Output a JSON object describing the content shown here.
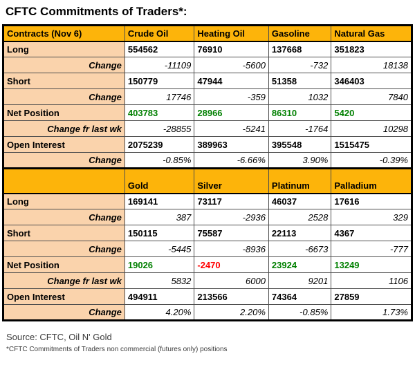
{
  "page_title": "CFTC Commitments of Traders*:",
  "colors": {
    "header_bg": "#fdb40a",
    "label_bg": "#fad3ac",
    "positive": "#008000",
    "negative": "#ff0000",
    "border_inner": "#4d4d4d",
    "border_outer": "#000000"
  },
  "table": {
    "sections": [
      {
        "headers": [
          "Contracts (Nov 6)",
          "Crude Oil",
          "Heating Oil",
          "Gasoline",
          "Natural Gas"
        ],
        "tall_header": false,
        "rows": [
          {
            "label": "Long",
            "type": "position",
            "values": [
              "554562",
              "76910",
              "137668",
              "351823"
            ]
          },
          {
            "label": "Change",
            "type": "change",
            "values": [
              "-11109",
              "-5600",
              "-732",
              "18138"
            ]
          },
          {
            "label": "Short",
            "type": "position",
            "values": [
              "150779",
              "47944",
              "51358",
              "346403"
            ]
          },
          {
            "label": "Change",
            "type": "change",
            "values": [
              "17746",
              "-359",
              "1032",
              "7840"
            ]
          },
          {
            "label": "Net Position",
            "type": "net",
            "values": [
              "403783",
              "28966",
              "86310",
              "5420"
            ],
            "value_colors": [
              "#008000",
              "#008000",
              "#008000",
              "#008000"
            ]
          },
          {
            "label": "Change fr last wk",
            "type": "change",
            "values": [
              "-28855",
              "-5241",
              "-1764",
              "10298"
            ]
          },
          {
            "label": "Open Interest",
            "type": "position",
            "values": [
              "2075239",
              "389963",
              "395548",
              "1515475"
            ]
          },
          {
            "label": "Change",
            "type": "change",
            "values": [
              "-0.85%",
              "-6.66%",
              "3.90%",
              "-0.39%"
            ]
          }
        ]
      },
      {
        "headers": [
          "",
          "Gold",
          "Silver",
          "Platinum",
          "Palladium"
        ],
        "tall_header": true,
        "rows": [
          {
            "label": "Long",
            "type": "position",
            "values": [
              "169141",
              "73117",
              "46037",
              "17616"
            ]
          },
          {
            "label": "Change",
            "type": "change",
            "values": [
              "387",
              "-2936",
              "2528",
              "329"
            ]
          },
          {
            "label": "Short",
            "type": "position",
            "values": [
              "150115",
              "75587",
              "22113",
              "4367"
            ]
          },
          {
            "label": "Change",
            "type": "change",
            "values": [
              "-5445",
              "-8936",
              "-6673",
              "-777"
            ]
          },
          {
            "label": "Net Position",
            "type": "net",
            "values": [
              "19026",
              "-2470",
              "23924",
              "13249"
            ],
            "value_colors": [
              "#008000",
              "#ff0000",
              "#008000",
              "#008000"
            ]
          },
          {
            "label": "Change fr last wk",
            "type": "change",
            "values": [
              "5832",
              "6000",
              "9201",
              "1106"
            ]
          },
          {
            "label": "Open Interest",
            "type": "position",
            "values": [
              "494911",
              "213566",
              "74364",
              "27859"
            ]
          },
          {
            "label": "Change",
            "type": "change",
            "values": [
              "4.20%",
              "2.20%",
              "-0.85%",
              "1.73%"
            ]
          }
        ]
      }
    ]
  },
  "footer": {
    "source": "Source: CFTC, Oil N' Gold",
    "footnote": "*CFTC Commitments of Traders non commercial (futures only) positions"
  }
}
